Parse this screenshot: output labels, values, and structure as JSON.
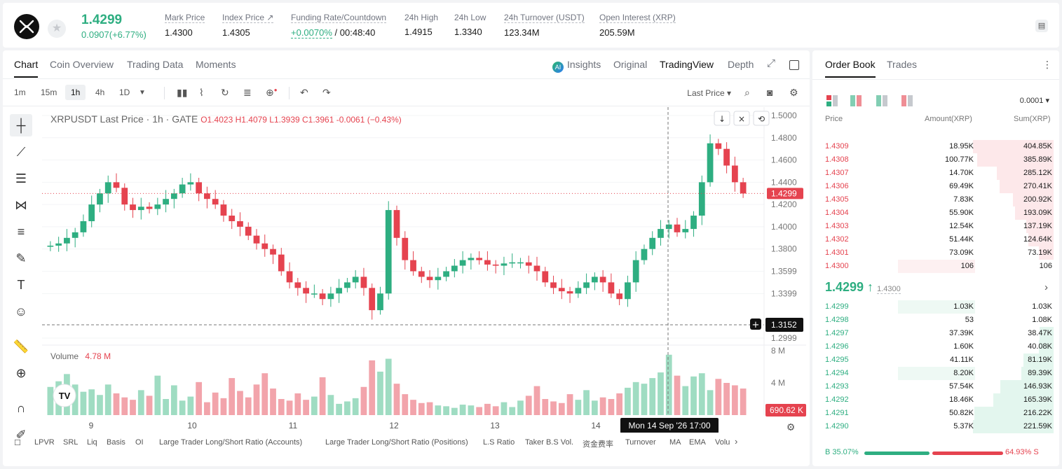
{
  "header": {
    "last_price": "1.4299",
    "change": "0.0907(+6.77%)",
    "stats": [
      {
        "label": "Mark Price",
        "value": "1.4300"
      },
      {
        "label": "Index Price ↗",
        "value": "1.4305"
      },
      {
        "label": "Funding Rate/Countdown",
        "value_green": "+0.0070%",
        "value": "/ 00:48:40"
      },
      {
        "label": "24h High",
        "value": "1.4915"
      },
      {
        "label": "24h Low",
        "value": "1.3340"
      },
      {
        "label": "24h Turnover (USDT)",
        "value": "123.34M"
      },
      {
        "label": "Open Interest (XRP)",
        "value": "205.59M"
      }
    ]
  },
  "chart_tabs": {
    "left": [
      "Chart",
      "Coin Overview",
      "Trading Data",
      "Moments"
    ],
    "right": [
      "Insights",
      "Original",
      "TradingView",
      "Depth"
    ],
    "active_left": "Chart",
    "active_right": "TradingView",
    "ai_badge": "AI"
  },
  "intervals": [
    "1m",
    "15m",
    "1h",
    "4h",
    "1D"
  ],
  "active_interval": "1h",
  "price_type": "Last Price",
  "legend": {
    "title": "XRPUSDT Last Price · 1h · GATE",
    "ohlc": "O1.4023  H1.4079  L1.3939  C1.3961  -0.0061 (−0.43%)"
  },
  "volume_legend": {
    "label": "Volume",
    "value": "4.78 M"
  },
  "chart_data": {
    "type": "candlestick",
    "price_axis_ticks": [
      "1.5000",
      "1.4800",
      "1.4600",
      "1.4400",
      "1.4200",
      "1.4000",
      "1.3800",
      "1.3599",
      "1.3399",
      "1.2999"
    ],
    "price_range": [
      1.2999,
      1.5
    ],
    "volume_axis_ticks": [
      "8 M",
      "4 M"
    ],
    "x_ticks": [
      "9",
      "10",
      "11",
      "12",
      "13",
      "14"
    ],
    "current_price_label": "1.4299",
    "crosshair_price_label": "1.3152",
    "crosshair_time_label": "Mon 14 Sep '26   17:00",
    "last_volume_label": "690.62 K",
    "series_close": [
      1.383,
      1.385,
      1.39,
      1.395,
      1.405,
      1.42,
      1.43,
      1.44,
      1.435,
      1.42,
      1.415,
      1.418,
      1.416,
      1.42,
      1.425,
      1.43,
      1.438,
      1.44,
      1.43,
      1.425,
      1.42,
      1.41,
      1.405,
      1.4,
      1.392,
      1.385,
      1.38,
      1.375,
      1.36,
      1.35,
      1.345,
      1.34,
      1.34,
      1.335,
      1.34,
      1.345,
      1.35,
      1.355,
      1.345,
      1.325,
      1.34,
      1.415,
      1.39,
      1.37,
      1.36,
      1.355,
      1.352,
      1.355,
      1.36,
      1.365,
      1.37,
      1.372,
      1.37,
      1.366,
      1.365,
      1.367,
      1.368,
      1.368,
      1.365,
      1.36,
      1.35,
      1.345,
      1.342,
      1.34,
      1.345,
      1.35,
      1.355,
      1.35,
      1.34,
      1.335,
      1.35,
      1.37,
      1.38,
      1.39,
      1.398,
      1.402,
      1.395,
      1.398,
      1.41,
      1.44,
      1.475,
      1.47,
      1.455,
      1.44,
      1.4299
    ],
    "series_volume": [
      3.5,
      4.2,
      5.1,
      3.8,
      2.9,
      3.2,
      2.5,
      3.8,
      2.7,
      2.2,
      1.9,
      3.1,
      2.4,
      4.9,
      2.0,
      3.7,
      1.8,
      2.3,
      4.1,
      1.6,
      2.8,
      2.1,
      4.6,
      3.0,
      2.2,
      3.8,
      5.2,
      3.3,
      2.0,
      1.8,
      2.7,
      1.9,
      2.3,
      4.7,
      2.5,
      1.4,
      1.7,
      2.1,
      3.5,
      6.8,
      5.4,
      7.0,
      3.9,
      2.6,
      1.9,
      1.5,
      1.6,
      1.2,
      1.1,
      0.9,
      1.3,
      1.2,
      1.0,
      1.4,
      1.1,
      1.6,
      1.0,
      1.8,
      2.4,
      3.6,
      2.0,
      1.7,
      1.5,
      2.6,
      1.9,
      3.1,
      1.8,
      2.2,
      2.0,
      2.7,
      3.4,
      4.1,
      3.9,
      4.6,
      5.3,
      7.5,
      4.9,
      3.6,
      4.8,
      5.2,
      3.1,
      4.5,
      4.0,
      3.7,
      3.3
    ]
  },
  "indicators": [
    "LPVR",
    "SRL",
    "Liq",
    "Basis",
    "OI",
    "Large Trader Long/Short Ratio (Accounts)",
    "Large Trader Long/Short Ratio (Positions)",
    "L.S Ratio",
    "Taker B.S Vol.",
    "资金费率",
    "Turnover",
    "MA",
    "EMA",
    "Volu"
  ],
  "orderbook": {
    "tabs": [
      "Order Book",
      "Trades"
    ],
    "precision": "0.0001",
    "headers": [
      "Price",
      "Amount(XRP)",
      "Sum(XRP)"
    ],
    "asks": [
      {
        "price": "1.4309",
        "amount": "18.95K",
        "sum": "404.85K",
        "depth": 1.0
      },
      {
        "price": "1.4308",
        "amount": "100.77K",
        "sum": "385.89K",
        "depth": 0.95
      },
      {
        "price": "1.4307",
        "amount": "14.70K",
        "sum": "285.12K",
        "depth": 0.7
      },
      {
        "price": "1.4306",
        "amount": "69.49K",
        "sum": "270.41K",
        "depth": 0.67
      },
      {
        "price": "1.4305",
        "amount": "7.83K",
        "sum": "200.92K",
        "depth": 0.5
      },
      {
        "price": "1.4304",
        "amount": "55.90K",
        "sum": "193.09K",
        "depth": 0.48
      },
      {
        "price": "1.4303",
        "amount": "12.54K",
        "sum": "137.19K",
        "depth": 0.34
      },
      {
        "price": "1.4302",
        "amount": "51.44K",
        "sum": "124.64K",
        "depth": 0.31
      },
      {
        "price": "1.4301",
        "amount": "73.09K",
        "sum": "73.19K",
        "depth": 0.18
      },
      {
        "price": "1.4300",
        "amount": "106",
        "sum": "106",
        "depth": 0.0
      }
    ],
    "mid_price": "1.4299 ↑",
    "mark_price": "1.4300",
    "bids": [
      {
        "price": "1.4299",
        "amount": "1.03K",
        "sum": "1.03K",
        "depth": 0.0
      },
      {
        "price": "1.4298",
        "amount": "53",
        "sum": "1.08K",
        "depth": 0.0
      },
      {
        "price": "1.4297",
        "amount": "37.39K",
        "sum": "38.47K",
        "depth": 0.17
      },
      {
        "price": "1.4296",
        "amount": "1.60K",
        "sum": "40.08K",
        "depth": 0.18
      },
      {
        "price": "1.4295",
        "amount": "41.11K",
        "sum": "81.19K",
        "depth": 0.37
      },
      {
        "price": "1.4294",
        "amount": "8.20K",
        "sum": "89.39K",
        "depth": 0.4
      },
      {
        "price": "1.4293",
        "amount": "57.54K",
        "sum": "146.93K",
        "depth": 0.66
      },
      {
        "price": "1.4292",
        "amount": "18.46K",
        "sum": "165.39K",
        "depth": 0.75
      },
      {
        "price": "1.4291",
        "amount": "50.82K",
        "sum": "216.22K",
        "depth": 0.98
      },
      {
        "price": "1.4290",
        "amount": "5.37K",
        "sum": "221.59K",
        "depth": 1.0
      }
    ],
    "buy_ratio": "B 35.07%",
    "sell_ratio": "64.93% S",
    "buy_fraction": 0.3507
  },
  "colors": {
    "green": "#2eae81",
    "red": "#e5434f",
    "green_bar": "#9fdcc2",
    "red_bar": "#f2a4ab"
  }
}
